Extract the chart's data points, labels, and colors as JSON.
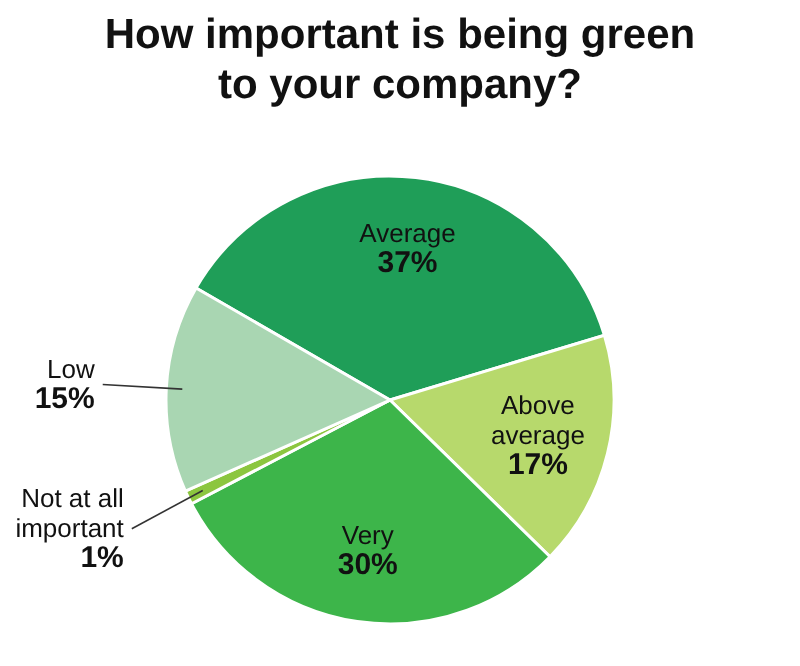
{
  "chart_data": {
    "type": "pie",
    "title": "How important is being green to your company?",
    "categories": [
      "Average",
      "Above average",
      "Very",
      "Not at all important",
      "Low"
    ],
    "values": [
      37,
      17,
      30,
      1,
      15
    ],
    "value_labels": [
      "37%",
      "17%",
      "30%",
      "1%",
      "15%"
    ],
    "colors": [
      "#1f9e58",
      "#b7d96c",
      "#3db54a",
      "#8cc63f",
      "#a9d6b2"
    ]
  }
}
